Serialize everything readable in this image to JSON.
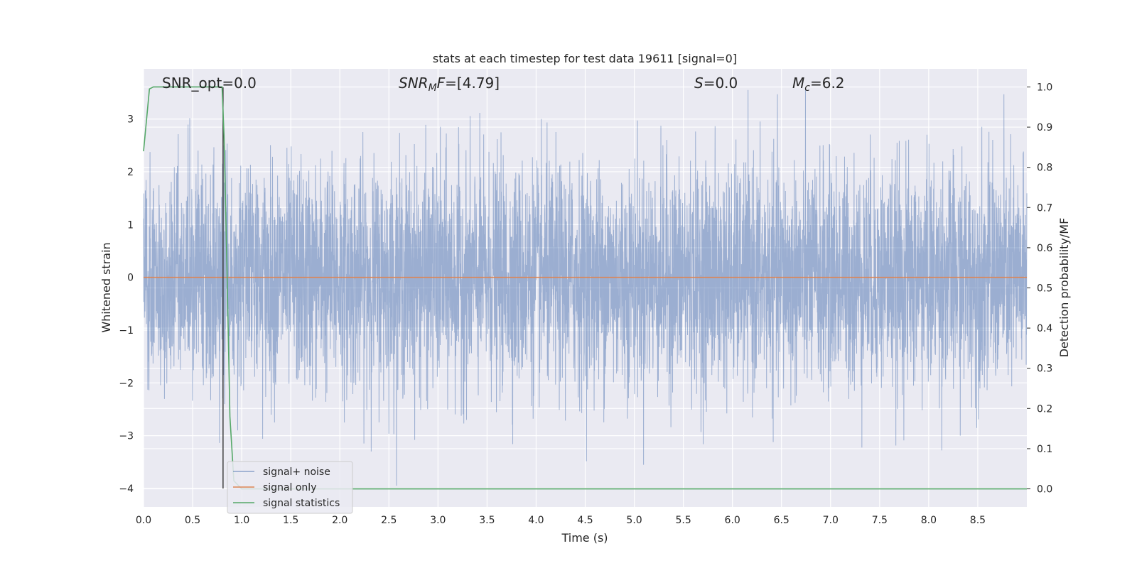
{
  "chart_data": {
    "type": "line",
    "title": "stats at each timestep for test data 19611 [signal=0]",
    "xlabel": "Time (s)",
    "ylabel": "Whitened strain",
    "y2label": "Detection probability/MF",
    "xlim": [
      0.0,
      9.0
    ],
    "ylim": [
      -4.35,
      3.95
    ],
    "y2lim": [
      -0.045,
      1.045
    ],
    "x_ticks": [
      "0.0",
      "0.5",
      "1.0",
      "1.5",
      "2.0",
      "2.5",
      "3.0",
      "3.5",
      "4.0",
      "4.5",
      "5.0",
      "5.5",
      "6.0",
      "6.5",
      "7.0",
      "7.5",
      "8.0",
      "8.5"
    ],
    "y_ticks": [
      "3",
      "2",
      "1",
      "0",
      "−1",
      "−2",
      "−3",
      "−4"
    ],
    "y2_ticks": [
      "1.0",
      "0.9",
      "0.8",
      "0.7",
      "0.6",
      "0.5",
      "0.4",
      "0.3",
      "0.2",
      "0.1",
      "0.0"
    ],
    "grid": true,
    "legend_position": "lower-left",
    "annotations": {
      "snr_opt": "SNR_opt=0.0",
      "snr_mf": "=[4.79]",
      "snr_mf_base": "SNR",
      "snr_mf_sub": "M",
      "snr_mf_tail": "F",
      "s": "S",
      "s_tail": "=0.0",
      "mc": "M",
      "mc_sub": "c",
      "mc_tail": "=6.2"
    },
    "vline_x": 0.81,
    "series": [
      {
        "name": "signal+ noise",
        "color": "#4c72b0",
        "axis": "left",
        "description": "noise samples, amplitude roughly within ±3.5"
      },
      {
        "name": "signal only",
        "color": "#dd8452",
        "axis": "left",
        "x": [
          0.0,
          9.0
        ],
        "y": [
          0.0,
          0.0
        ]
      },
      {
        "name": "signal statistics",
        "color": "#55a868",
        "axis": "right",
        "x": [
          0.0,
          0.06,
          0.1,
          0.2,
          0.3,
          0.4,
          0.5,
          0.6,
          0.7,
          0.78,
          0.8,
          0.82,
          0.85,
          0.88,
          0.92,
          1.0,
          2.0,
          3.0,
          4.0,
          5.0,
          6.0,
          7.0,
          8.0,
          9.0
        ],
        "y": [
          0.84,
          0.995,
          1.0,
          1.0,
          1.0,
          1.0,
          1.0,
          1.0,
          1.0,
          1.0,
          1.0,
          0.88,
          0.55,
          0.18,
          0.02,
          0.0,
          0.0,
          0.0,
          0.0,
          0.0,
          0.0,
          0.0,
          0.0,
          0.0
        ]
      }
    ]
  }
}
